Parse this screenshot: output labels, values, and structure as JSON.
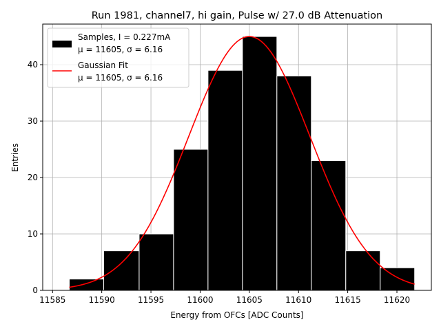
{
  "chart_data": {
    "type": "bar",
    "title": "Run 1981, channel7, hi gain, Pulse w/ 27.0 dB Attenuation",
    "xlabel": "Energy from OFCs [ADC Counts]",
    "ylabel": "Entries",
    "xlim": [
      11584,
      11623.5
    ],
    "ylim": [
      0,
      47.2
    ],
    "grid": true,
    "legend_position": "upper left",
    "x_ticks": [
      11585,
      11590,
      11595,
      11600,
      11605,
      11610,
      11615,
      11620
    ],
    "x_tick_labels": [
      "11585",
      "11590",
      "11595",
      "11600",
      "11605",
      "11610",
      "11615",
      "11620"
    ],
    "y_ticks": [
      0,
      10,
      20,
      30,
      40
    ],
    "y_tick_labels": [
      "0",
      "10",
      "20",
      "30",
      "40"
    ],
    "histogram": {
      "name": "Samples, I = 0.227mA",
      "stats_label": "μ = 11605, σ = 6.16",
      "color": "#000000",
      "edge_color": "#ffffff",
      "bin_edges": [
        11586.7,
        11590.2,
        11593.8,
        11597.3,
        11600.8,
        11604.3,
        11607.8,
        11611.3,
        11614.8,
        11618.3,
        11621.8
      ],
      "counts": [
        2,
        7,
        10,
        25,
        39,
        45,
        38,
        23,
        7,
        4
      ]
    },
    "fit": {
      "name": "Gaussian Fit",
      "stats_label": "μ = 11605, σ = 6.16",
      "color": "#ff0000",
      "mu": 11605,
      "sigma": 6.16,
      "amplitude": 45,
      "x_range": [
        11586.7,
        11621.8
      ]
    }
  }
}
